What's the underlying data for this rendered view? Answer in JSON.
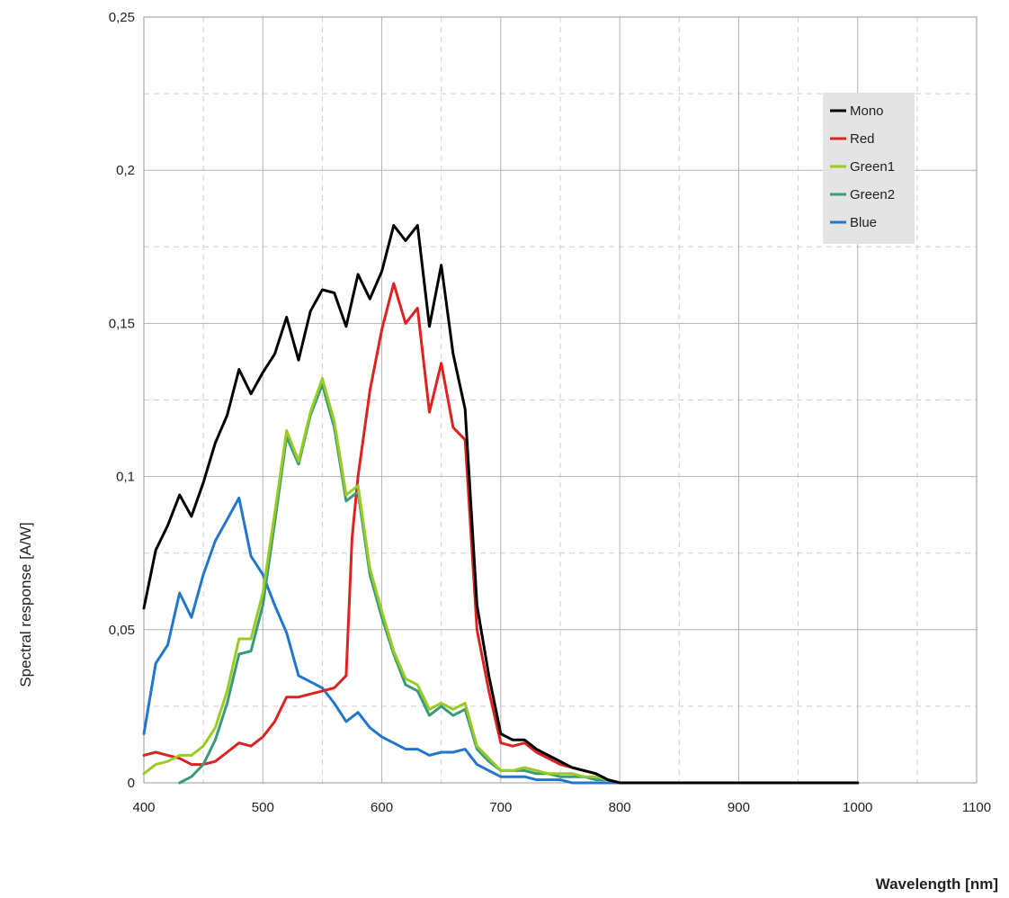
{
  "chart_data": {
    "type": "line",
    "title": "",
    "xlabel": "Wavelength [nm]",
    "ylabel": "Spectral response [A/W]",
    "xlim": [
      400,
      1100
    ],
    "ylim": [
      0,
      0.25
    ],
    "x_ticks": [
      400,
      500,
      600,
      700,
      800,
      900,
      1000,
      1100
    ],
    "x_tick_labels": [
      "400",
      "500",
      "600",
      "700",
      "800",
      "900",
      "1000",
      "1100"
    ],
    "y_ticks": [
      0,
      0.05,
      0.1,
      0.15,
      0.2,
      0.25
    ],
    "y_tick_labels": [
      "0",
      "0,05",
      "0,1",
      "0,15",
      "0,2",
      "0,25"
    ],
    "grid": true,
    "legend_position": "top-right",
    "series": [
      {
        "name": "Mono",
        "color": "#000000",
        "x": [
          400,
          410,
          420,
          430,
          440,
          450,
          460,
          470,
          480,
          490,
          500,
          510,
          520,
          530,
          540,
          550,
          560,
          570,
          580,
          590,
          600,
          610,
          620,
          630,
          640,
          650,
          660,
          670,
          680,
          690,
          700,
          710,
          720,
          730,
          740,
          750,
          760,
          770,
          780,
          790,
          800,
          850,
          900,
          950,
          1000
        ],
        "y": [
          0.057,
          0.076,
          0.084,
          0.094,
          0.087,
          0.098,
          0.111,
          0.12,
          0.135,
          0.127,
          0.134,
          0.14,
          0.152,
          0.138,
          0.154,
          0.161,
          0.16,
          0.149,
          0.166,
          0.158,
          0.167,
          0.182,
          0.177,
          0.182,
          0.149,
          0.169,
          0.14,
          0.122,
          0.058,
          0.035,
          0.016,
          0.014,
          0.014,
          0.011,
          0.009,
          0.007,
          0.005,
          0.004,
          0.003,
          0.001,
          0.0,
          0.0,
          0.0,
          0.0,
          0.0
        ]
      },
      {
        "name": "Red",
        "color": "#dd2222",
        "x": [
          400,
          410,
          420,
          430,
          440,
          450,
          460,
          470,
          480,
          490,
          500,
          510,
          520,
          530,
          540,
          550,
          560,
          570,
          575,
          580,
          590,
          600,
          610,
          620,
          630,
          640,
          650,
          660,
          670,
          680,
          690,
          700,
          710,
          720,
          730,
          740,
          750,
          760,
          770,
          780,
          790,
          800,
          850,
          900,
          950,
          1000
        ],
        "y": [
          0.009,
          0.01,
          0.009,
          0.008,
          0.006,
          0.006,
          0.007,
          0.01,
          0.013,
          0.012,
          0.015,
          0.02,
          0.028,
          0.028,
          0.029,
          0.03,
          0.031,
          0.035,
          0.08,
          0.1,
          0.128,
          0.148,
          0.163,
          0.15,
          0.155,
          0.121,
          0.137,
          0.116,
          0.112,
          0.05,
          0.03,
          0.013,
          0.012,
          0.013,
          0.01,
          0.008,
          0.006,
          0.005,
          0.004,
          0.003,
          0.001,
          0.0,
          0.0,
          0.0,
          0.0,
          0.0
        ]
      },
      {
        "name": "Green1",
        "color": "#99cc22",
        "x": [
          400,
          410,
          420,
          430,
          440,
          450,
          460,
          470,
          480,
          490,
          500,
          510,
          520,
          530,
          540,
          550,
          560,
          570,
          580,
          590,
          600,
          610,
          620,
          630,
          640,
          650,
          660,
          670,
          680,
          690,
          700,
          710,
          720,
          730,
          740,
          750,
          760,
          770,
          780,
          790,
          800,
          850,
          900,
          950,
          1000
        ],
        "y": [
          0.003,
          0.006,
          0.007,
          0.009,
          0.009,
          0.012,
          0.018,
          0.03,
          0.047,
          0.047,
          0.062,
          0.088,
          0.115,
          0.105,
          0.121,
          0.132,
          0.118,
          0.094,
          0.097,
          0.07,
          0.056,
          0.043,
          0.034,
          0.032,
          0.024,
          0.026,
          0.024,
          0.026,
          0.012,
          0.008,
          0.004,
          0.004,
          0.005,
          0.004,
          0.003,
          0.003,
          0.003,
          0.002,
          0.002,
          0.001,
          0.0,
          0.0,
          0.0,
          0.0,
          0.0
        ]
      },
      {
        "name": "Green2",
        "color": "#3a9a7a",
        "x": [
          430,
          440,
          450,
          460,
          470,
          480,
          490,
          500,
          510,
          520,
          530,
          540,
          550,
          560,
          570,
          580,
          590,
          600,
          610,
          620,
          630,
          640,
          650,
          660,
          670,
          680,
          690,
          700,
          710,
          720,
          730,
          740,
          750,
          760,
          770,
          780,
          790,
          800,
          850,
          900,
          950,
          1000
        ],
        "y": [
          0.0,
          0.002,
          0.006,
          0.014,
          0.026,
          0.042,
          0.043,
          0.058,
          0.085,
          0.113,
          0.104,
          0.12,
          0.13,
          0.116,
          0.092,
          0.095,
          0.068,
          0.054,
          0.042,
          0.032,
          0.03,
          0.022,
          0.025,
          0.022,
          0.024,
          0.011,
          0.007,
          0.004,
          0.004,
          0.004,
          0.003,
          0.003,
          0.002,
          0.002,
          0.002,
          0.001,
          0.001,
          0.0,
          0.0,
          0.0,
          0.0,
          0.0
        ]
      },
      {
        "name": "Blue",
        "color": "#2277cc",
        "x": [
          400,
          410,
          420,
          430,
          440,
          450,
          460,
          470,
          480,
          490,
          500,
          510,
          520,
          530,
          540,
          550,
          560,
          570,
          580,
          590,
          600,
          610,
          620,
          630,
          640,
          650,
          660,
          670,
          680,
          690,
          700,
          710,
          720,
          730,
          740,
          750,
          760,
          770,
          780,
          790,
          800,
          850,
          900,
          950,
          1000
        ],
        "y": [
          0.016,
          0.039,
          0.045,
          0.062,
          0.054,
          0.068,
          0.079,
          0.086,
          0.093,
          0.074,
          0.068,
          0.058,
          0.049,
          0.035,
          0.033,
          0.031,
          0.026,
          0.02,
          0.023,
          0.018,
          0.015,
          0.013,
          0.011,
          0.011,
          0.009,
          0.01,
          0.01,
          0.011,
          0.006,
          0.004,
          0.002,
          0.002,
          0.002,
          0.001,
          0.001,
          0.001,
          0.0,
          0.0,
          0.0,
          0.0,
          0.0,
          0.0,
          0.0,
          0.0,
          0.0
        ]
      }
    ]
  }
}
